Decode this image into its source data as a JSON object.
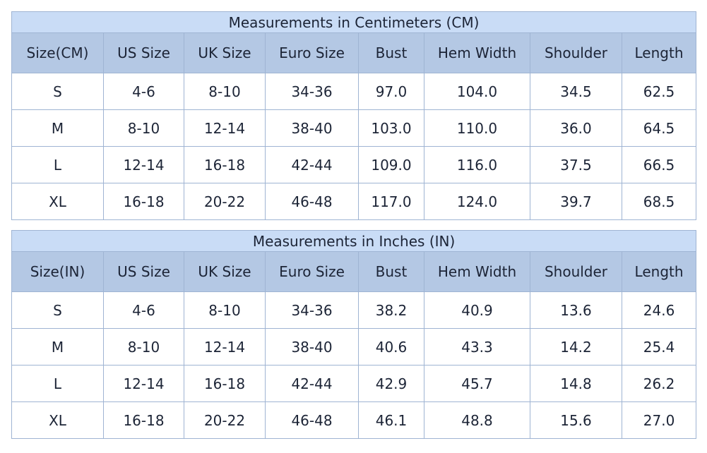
{
  "tables": [
    {
      "title": "Measurements in Centimeters (CM)",
      "headers": [
        "Size(CM)",
        "US Size",
        "UK Size",
        "Euro Size",
        "Bust",
        "Hem Width",
        "Shoulder",
        "Length"
      ],
      "rows": [
        [
          "S",
          "4-6",
          "8-10",
          "34-36",
          "97.0",
          "104.0",
          "34.5",
          "62.5"
        ],
        [
          "M",
          "8-10",
          "12-14",
          "38-40",
          "103.0",
          "110.0",
          "36.0",
          "64.5"
        ],
        [
          "L",
          "12-14",
          "16-18",
          "42-44",
          "109.0",
          "116.0",
          "37.5",
          "66.5"
        ],
        [
          "XL",
          "16-18",
          "20-22",
          "46-48",
          "117.0",
          "124.0",
          "39.7",
          "68.5"
        ]
      ]
    },
    {
      "title": "Measurements in Inches (IN)",
      "headers": [
        "Size(IN)",
        "US Size",
        "UK Size",
        "Euro Size",
        "Bust",
        "Hem Width",
        "Shoulder",
        "Length"
      ],
      "rows": [
        [
          "S",
          "4-6",
          "8-10",
          "34-36",
          "38.2",
          "40.9",
          "13.6",
          "24.6"
        ],
        [
          "M",
          "8-10",
          "12-14",
          "38-40",
          "40.6",
          "43.3",
          "14.2",
          "25.4"
        ],
        [
          "L",
          "12-14",
          "16-18",
          "42-44",
          "42.9",
          "45.7",
          "14.8",
          "26.2"
        ],
        [
          "XL",
          "16-18",
          "20-22",
          "46-48",
          "46.1",
          "48.8",
          "15.6",
          "27.0"
        ]
      ]
    }
  ],
  "colors": {
    "title_bg": "#c9dcf6",
    "header_bg": "#b4c8e4",
    "border": "#9fb4d3",
    "text": "#1c2436"
  }
}
